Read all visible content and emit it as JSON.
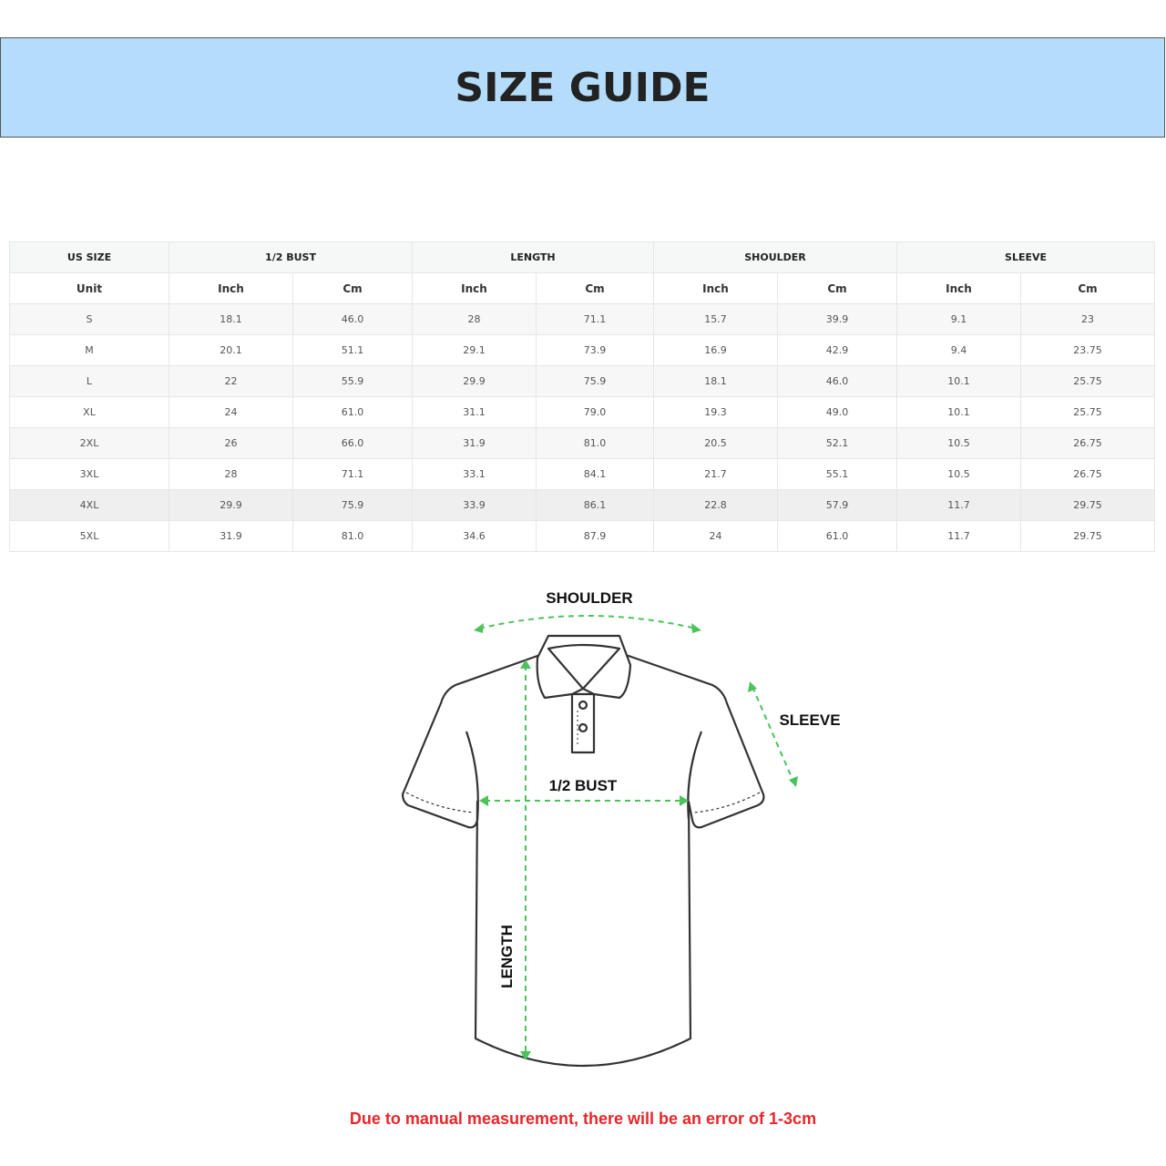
{
  "title": "SIZE GUIDE",
  "table": {
    "groups": [
      "US SIZE",
      "1/2 BUST",
      "LENGTH",
      "SHOULDER",
      "SLEEVE"
    ],
    "units": [
      "Unit",
      "Inch",
      "Cm",
      "Inch",
      "Cm",
      "Inch",
      "Cm",
      "Inch",
      "Cm"
    ],
    "rows": [
      [
        "S",
        "18.1",
        "46.0",
        "28",
        "71.1",
        "15.7",
        "39.9",
        "9.1",
        "23"
      ],
      [
        "M",
        "20.1",
        "51.1",
        "29.1",
        "73.9",
        "16.9",
        "42.9",
        "9.4",
        "23.75"
      ],
      [
        "L",
        "22",
        "55.9",
        "29.9",
        "75.9",
        "18.1",
        "46.0",
        "10.1",
        "25.75"
      ],
      [
        "XL",
        "24",
        "61.0",
        "31.1",
        "79.0",
        "19.3",
        "49.0",
        "10.1",
        "25.75"
      ],
      [
        "2XL",
        "26",
        "66.0",
        "31.9",
        "81.0",
        "20.5",
        "52.1",
        "10.5",
        "26.75"
      ],
      [
        "3XL",
        "28",
        "71.1",
        "33.1",
        "84.1",
        "21.7",
        "55.1",
        "10.5",
        "26.75"
      ],
      [
        "4XL",
        "29.9",
        "75.9",
        "33.9",
        "86.1",
        "22.8",
        "57.9",
        "11.7",
        "29.75"
      ],
      [
        "5XL",
        "31.9",
        "81.0",
        "34.6",
        "87.9",
        "24",
        "61.0",
        "11.7",
        "29.75"
      ]
    ]
  },
  "diagram": {
    "shoulder_label": "SHOULDER",
    "sleeve_label": "SLEEVE",
    "bust_label": "1/2 BUST",
    "length_label": "LENGTH",
    "arrow_color": "#4cc35a"
  },
  "note": "Due to manual measurement, there will be an error of 1-3cm",
  "colors": {
    "banner": "#b3ddfb",
    "note": "#e8262a"
  }
}
